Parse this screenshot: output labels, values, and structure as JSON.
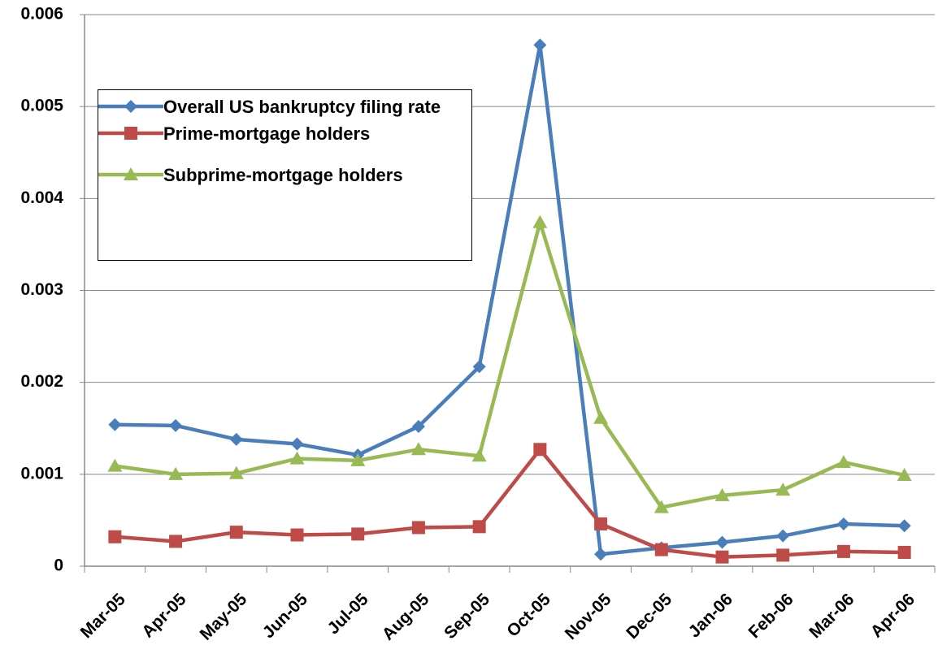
{
  "chart_data": {
    "type": "line",
    "categories": [
      "Mar-05",
      "Apr-05",
      "May-05",
      "Jun-05",
      "Jul-05",
      "Aug-05",
      "Sep-05",
      "Oct-05",
      "Nov-05",
      "Dec-05",
      "Jan-06",
      "Feb-06",
      "Mar-06",
      "Apr-06"
    ],
    "series": [
      {
        "name": "Overall US bankruptcy filing rate",
        "color": "#4a7ebb",
        "marker": "diamond",
        "values": [
          0.00154,
          0.00153,
          0.00138,
          0.00133,
          0.00121,
          0.00152,
          0.00217,
          0.00567,
          0.00013,
          0.0002,
          0.00026,
          0.00033,
          0.00046,
          0.00044
        ]
      },
      {
        "name": "Prime-mortgage holders",
        "color": "#be4b48",
        "marker": "square",
        "values": [
          0.00032,
          0.00027,
          0.00037,
          0.00034,
          0.00035,
          0.00042,
          0.00043,
          0.00127,
          0.00046,
          0.00018,
          0.0001,
          0.00012,
          0.00016,
          0.00015
        ]
      },
      {
        "name": "Subprime-mortgage holders",
        "color": "#98b954",
        "marker": "triangle",
        "values": [
          0.00109,
          0.001,
          0.00101,
          0.00117,
          0.00115,
          0.00127,
          0.0012,
          0.00374,
          0.00161,
          0.00064,
          0.00077,
          0.00083,
          0.00113,
          0.00099
        ]
      }
    ],
    "ylim": [
      0,
      0.006
    ],
    "yticks": [
      0,
      0.001,
      0.002,
      0.003,
      0.004,
      0.005,
      0.006
    ],
    "grid": true
  }
}
